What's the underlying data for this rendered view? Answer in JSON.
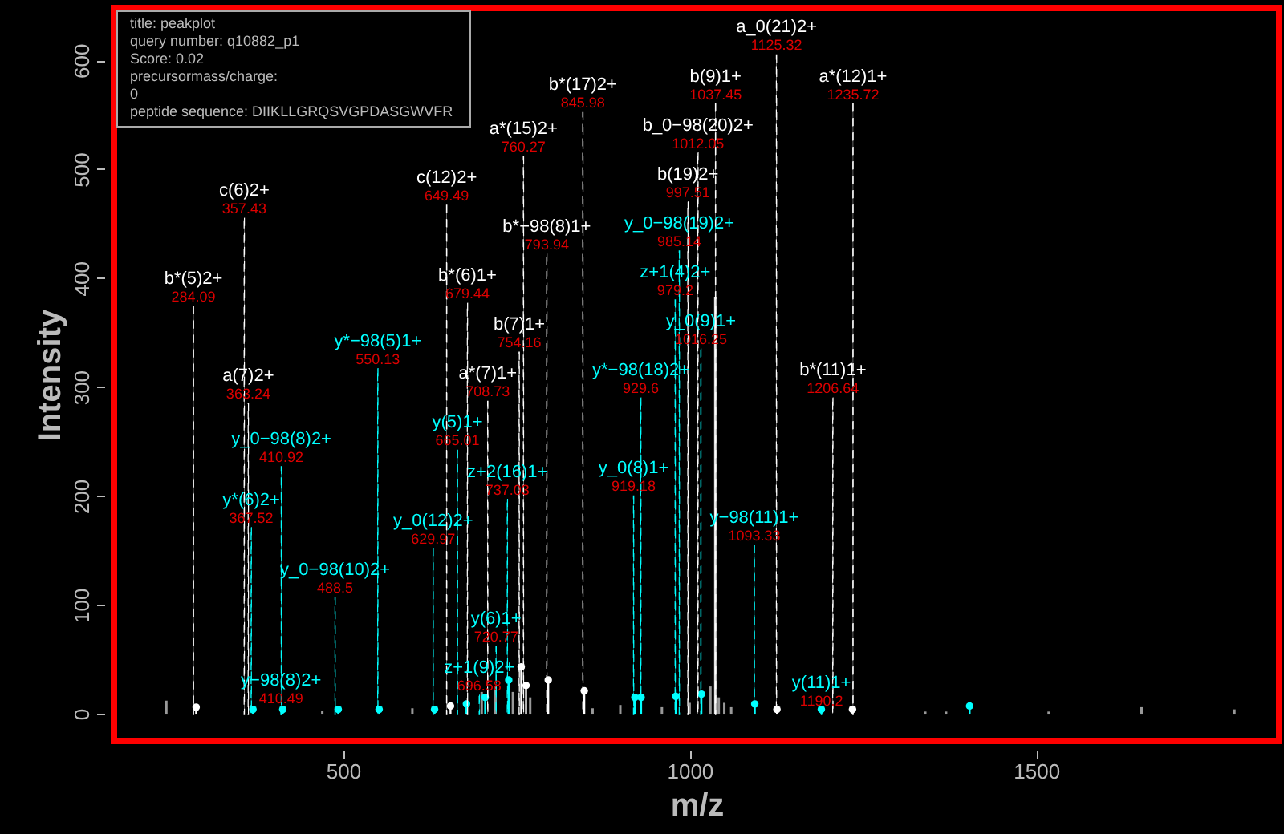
{
  "chart_data": {
    "type": "bar",
    "xlabel": "m/z",
    "ylabel": "Intensity",
    "xlim": [
      181,
      1839
    ],
    "ylim": [
      -25,
      648
    ],
    "xticks": [
      500,
      1000,
      1500
    ],
    "yticks": [
      0,
      100,
      200,
      300,
      400,
      500,
      600
    ],
    "series": [
      {
        "color": "#999999",
        "x": [
          245,
          470,
          600,
          700,
          720,
          745,
          770,
          860,
          900,
          960,
          1000,
          1030,
          1042,
          1050,
          1060,
          1340,
          1370,
          1518,
          1652,
          1786
        ],
        "values": [
          12,
          3,
          5,
          20,
          25,
          20,
          15,
          5,
          8,
          6,
          10,
          25,
          15,
          10,
          6,
          2,
          2,
          2,
          6,
          4
        ]
      },
      {
        "color": "#e0e0e0",
        "x": [
          1037
        ],
        "values": [
          383
        ]
      },
      {
        "type": "lollipop",
        "marker": "circle",
        "color": "#ffffff",
        "x": [
          288,
          655,
          757,
          764,
          796,
          848,
          1126,
          1235
        ],
        "values": [
          6,
          7,
          43,
          26,
          31,
          21,
          4,
          4
        ]
      },
      {
        "type": "lollipop",
        "marker": "circle",
        "color": "#00ffff",
        "x": [
          370,
          413,
          493,
          552,
          632,
          678,
          705,
          739,
          921,
          930,
          980,
          1017,
          1094,
          1190,
          1404
        ],
        "values": [
          4,
          4,
          4,
          4,
          4,
          9,
          15,
          31,
          15,
          15,
          16,
          18,
          9,
          4,
          7
        ]
      },
      {
        "line_style": "dashed",
        "color": "#ffffff",
        "x": [
          284.09,
          357.43,
          363.24,
          649.49,
          679.44,
          708.73,
          754.16,
          760.27,
          793.94,
          845.98,
          997.51,
          1012.05,
          1037.45,
          1125.32,
          1206.64,
          1235.72
        ],
        "values": [
          374,
          455,
          285,
          467,
          377,
          287,
          332,
          512,
          422,
          552,
          470,
          515,
          560,
          605,
          290,
          560
        ],
        "value_labels": [
          "b*(5)2+",
          "c(6)2+",
          "a(7)2+",
          "c(12)2+",
          "b*(6)1+",
          "a*(7)1+",
          "b(7)1+",
          "a*(15)2+",
          "b*−98(8)1+",
          "b*(17)2+",
          "b(19)2+",
          "b_0−98(20)2+",
          "b(9)1+",
          "a_0(21)2+",
          "b*(11)1+",
          "a*(12)1+"
        ]
      },
      {
        "line_style": "dashed",
        "color": "#00ffff",
        "x": [
          367.52,
          410.49,
          410.92,
          488.5,
          550.13,
          629.97,
          665.01,
          696.58,
          720.77,
          737.03,
          919.18,
          929.6,
          979.2,
          985.14,
          1016.25,
          1093.33,
          1190.2
        ],
        "values": [
          171,
          5,
          227,
          107,
          317,
          152,
          242,
          17,
          62,
          197,
          200,
          290,
          380,
          425,
          335,
          155,
          3
        ],
        "value_labels": [
          "y*(6)2+",
          "y−98(8)2+",
          "y_0−98(8)2+",
          "y_0−98(10)2+",
          "y*−98(5)1+",
          "y_0(12)2+",
          "y(5)1+",
          "z+1(9)2+",
          "y(6)1+",
          "z+2(16)1+",
          "y_0(8)1+",
          "y*−98(18)2+",
          "z+1(4)2+",
          "y_0−98(19)2+",
          "y_0(9)1+",
          "y−98(11)1+",
          "y(11)1+"
        ]
      }
    ],
    "annotations": [
      "title: peakplot",
      "query number: q10882_p1",
      "Score: 0.02",
      "precursormass/charge:",
      "0",
      "peptide sequence: DIIKLLGRQSVGPDASGWVFR",
      {
        "text": "284.09",
        "x": 284.09,
        "y": 374
      },
      {
        "text": "357.43",
        "x": 357.43,
        "y": 455
      },
      {
        "text": "363.24",
        "x": 363.24,
        "y": 285
      },
      {
        "text": "649.49",
        "x": 649.49,
        "y": 467
      },
      {
        "text": "679.44",
        "x": 679.44,
        "y": 377
      },
      {
        "text": "708.73",
        "x": 708.73,
        "y": 287
      },
      {
        "text": "754.16",
        "x": 754.16,
        "y": 332
      },
      {
        "text": "760.27",
        "x": 760.27,
        "y": 512
      },
      {
        "text": "793.94",
        "x": 793.94,
        "y": 422
      },
      {
        "text": "845.98",
        "x": 845.98,
        "y": 552
      },
      {
        "text": "997.51",
        "x": 997.51,
        "y": 470
      },
      {
        "text": "1012.05",
        "x": 1012.05,
        "y": 515
      },
      {
        "text": "1037.45",
        "x": 1037.45,
        "y": 560
      },
      {
        "text": "1125.32",
        "x": 1125.32,
        "y": 605
      },
      {
        "text": "1206.64",
        "x": 1206.64,
        "y": 290
      },
      {
        "text": "1235.72",
        "x": 1235.72,
        "y": 560
      },
      {
        "text": "367.52",
        "x": 367.52,
        "y": 171
      },
      {
        "text": "410.49",
        "x": 410.49,
        "y": 5
      },
      {
        "text": "410.92",
        "x": 410.92,
        "y": 227
      },
      {
        "text": "488.5",
        "x": 488.5,
        "y": 107
      },
      {
        "text": "550.13",
        "x": 550.13,
        "y": 317
      },
      {
        "text": "629.97",
        "x": 629.97,
        "y": 152
      },
      {
        "text": "665.01",
        "x": 665.01,
        "y": 242
      },
      {
        "text": "696.58",
        "x": 696.58,
        "y": 17
      },
      {
        "text": "720.77",
        "x": 720.77,
        "y": 62
      },
      {
        "text": "737.03",
        "x": 737.03,
        "y": 197
      },
      {
        "text": "919.18",
        "x": 919.18,
        "y": 200
      },
      {
        "text": "929.6",
        "x": 929.6,
        "y": 290
      },
      {
        "text": "979.2",
        "x": 979.2,
        "y": 380
      },
      {
        "text": "985.14",
        "x": 985.14,
        "y": 425
      },
      {
        "text": "1016.25",
        "x": 1016.25,
        "y": 335
      },
      {
        "text": "1093.33",
        "x": 1093.33,
        "y": 155
      },
      {
        "text": "1190.2",
        "x": 1190.2,
        "y": 3
      }
    ]
  }
}
